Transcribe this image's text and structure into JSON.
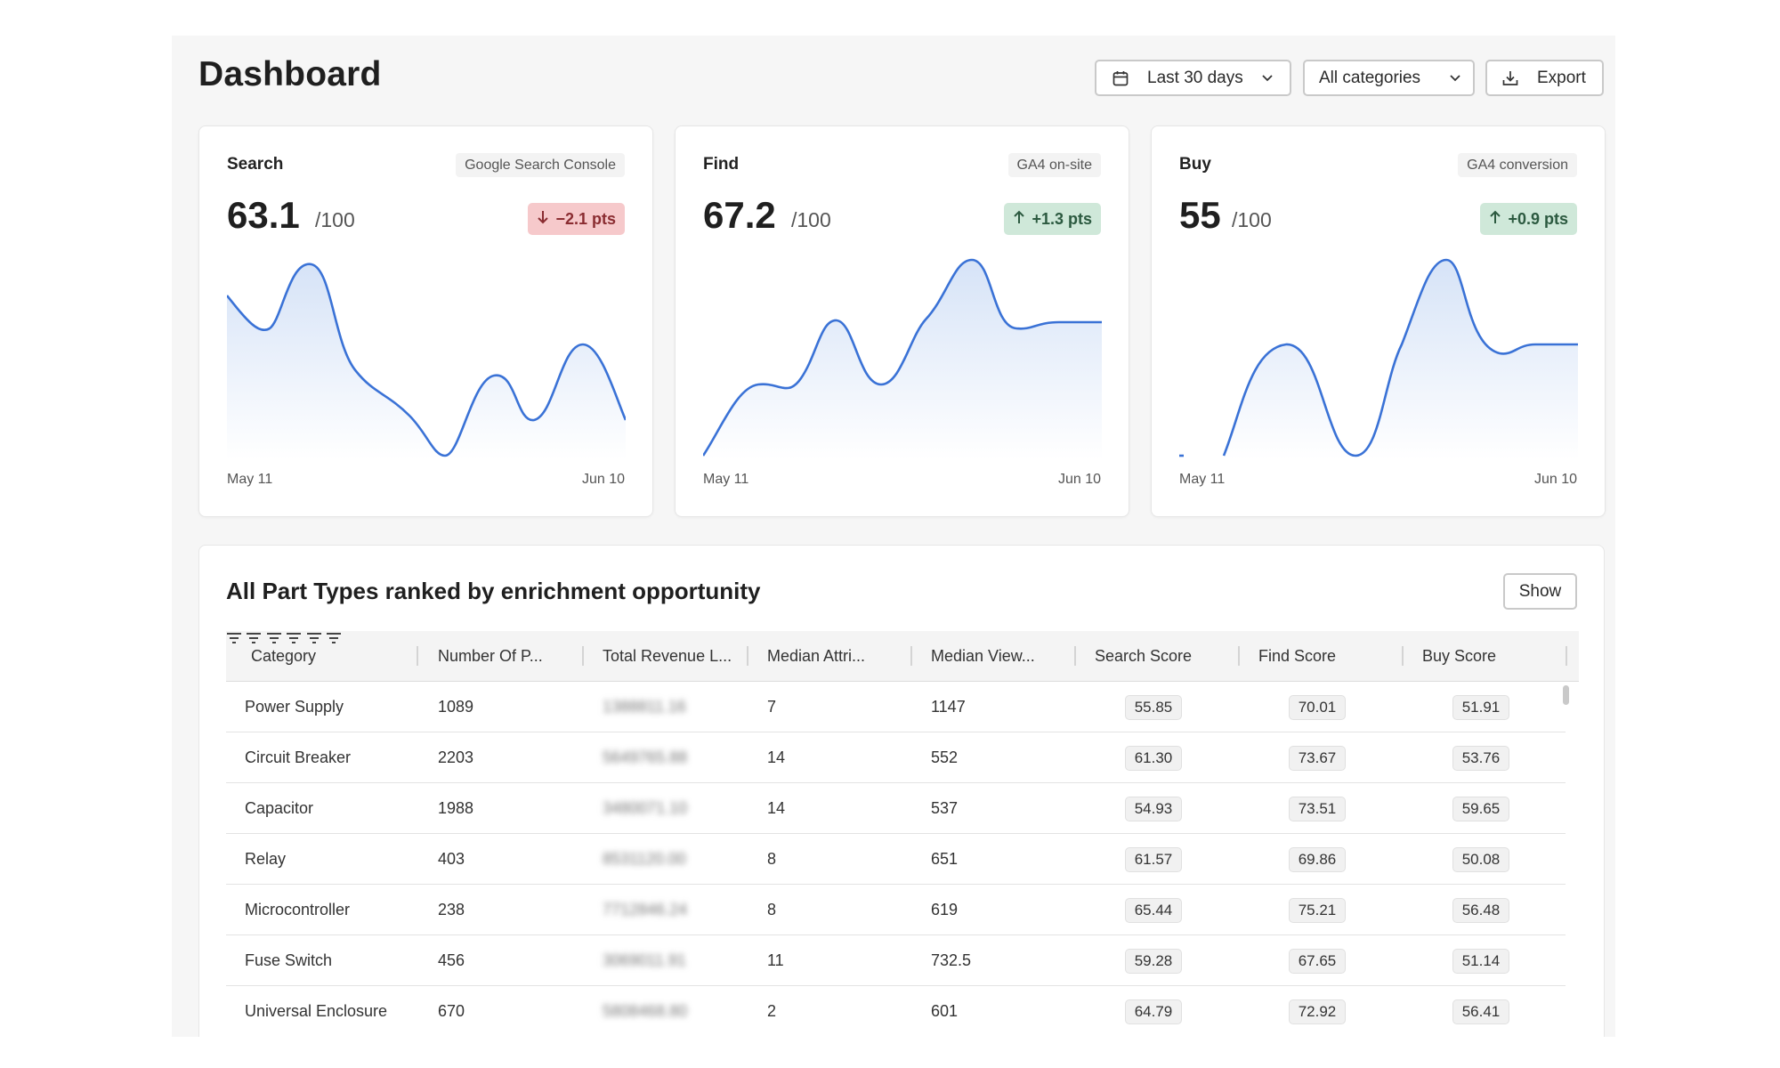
{
  "page": {
    "title": "Dashboard"
  },
  "toolbar": {
    "date_label": "Last 30 days",
    "category_label": "All categories",
    "export_label": "Export"
  },
  "colors": {
    "line": "#3a72d6",
    "neg_badge": "#f6c9cb",
    "pos_badge": "#cfe8d9"
  },
  "cards": [
    {
      "name": "Search",
      "source": "Google Search Console",
      "score": "63.1",
      "outof": "/100",
      "delta": "−2.1 pts",
      "delta_dir": "down",
      "start_date": "May 11",
      "end_date": "Jun 10"
    },
    {
      "name": "Find",
      "source": "GA4 on-site",
      "score": "67.2",
      "outof": "/100",
      "delta": "+1.3 pts",
      "delta_dir": "up",
      "start_date": "May 11",
      "end_date": "Jun 10"
    },
    {
      "name": "Buy",
      "source": "GA4 conversion",
      "score": "55",
      "outof": "/100",
      "delta": "+0.9 pts",
      "delta_dir": "up",
      "start_date": "May 11",
      "end_date": "Jun 10"
    }
  ],
  "table": {
    "title": "All Part Types ranked by enrichment opportunity",
    "show_label": "Show",
    "columns": [
      "Category",
      "Number Of P...",
      "Total Revenue L...",
      "Median Attri...",
      "Median View...",
      "Search Score",
      "Find Score",
      "Buy Score"
    ],
    "rows": [
      {
        "category": "Power Supply",
        "num": "1089",
        "revenue": "1388811.16",
        "attr": "7",
        "views": "1147",
        "search": "55.85",
        "find": "70.01",
        "buy": "51.91"
      },
      {
        "category": "Circuit Breaker",
        "num": "2203",
        "revenue": "5649765.88",
        "attr": "14",
        "views": "552",
        "search": "61.30",
        "find": "73.67",
        "buy": "53.76"
      },
      {
        "category": "Capacitor",
        "num": "1988",
        "revenue": "3480071.10",
        "attr": "14",
        "views": "537",
        "search": "54.93",
        "find": "73.51",
        "buy": "59.65"
      },
      {
        "category": "Relay",
        "num": "403",
        "revenue": "8531120.00",
        "attr": "8",
        "views": "651",
        "search": "61.57",
        "find": "69.86",
        "buy": "50.08"
      },
      {
        "category": "Microcontroller",
        "num": "238",
        "revenue": "7712846.24",
        "attr": "8",
        "views": "619",
        "search": "65.44",
        "find": "75.21",
        "buy": "56.48"
      },
      {
        "category": "Fuse Switch",
        "num": "456",
        "revenue": "3069011.91",
        "attr": "11",
        "views": "732.5",
        "search": "59.28",
        "find": "67.65",
        "buy": "51.14"
      },
      {
        "category": "Universal Enclosure",
        "num": "670",
        "revenue": "5808468.80",
        "attr": "2",
        "views": "601",
        "search": "64.79",
        "find": "72.92",
        "buy": "56.41"
      }
    ]
  }
}
